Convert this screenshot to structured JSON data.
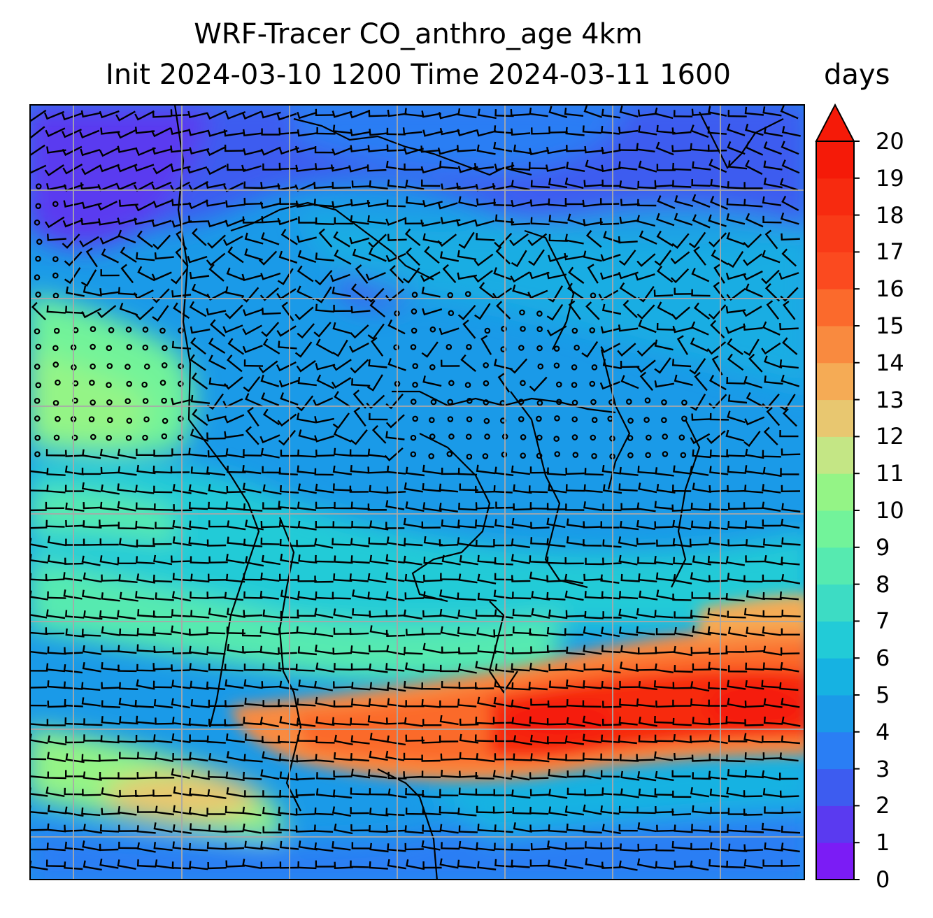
{
  "title": {
    "line1": "WRF-Tracer CO_anthro_age 4km",
    "line2": "Init 2024-03-10 1200 Time 2024-03-11 1600",
    "unit": "days"
  },
  "colorbar": {
    "min": 0,
    "max": 20,
    "extend": "max",
    "ticks": [
      "0",
      "1",
      "2",
      "3",
      "4",
      "5",
      "6",
      "7",
      "8",
      "9",
      "10",
      "11",
      "12",
      "13",
      "14",
      "15",
      "16",
      "17",
      "18",
      "19",
      "20"
    ],
    "colors": [
      "#7b1cf5",
      "#5a3af0",
      "#3d5cf0",
      "#2a7ef4",
      "#1a9ae8",
      "#16b2e2",
      "#22cbd7",
      "#3ddcc4",
      "#56eab0",
      "#72f39a",
      "#94f486",
      "#c4e685",
      "#e8c770",
      "#f5ab55",
      "#f98a3f",
      "#fb6a2c",
      "#fb4a1f",
      "#f93a17",
      "#f72a0f",
      "#f51a08"
    ]
  },
  "map": {
    "gridlines": true,
    "coastlines": true,
    "wind_barbs": true,
    "background_level": 5
  }
}
